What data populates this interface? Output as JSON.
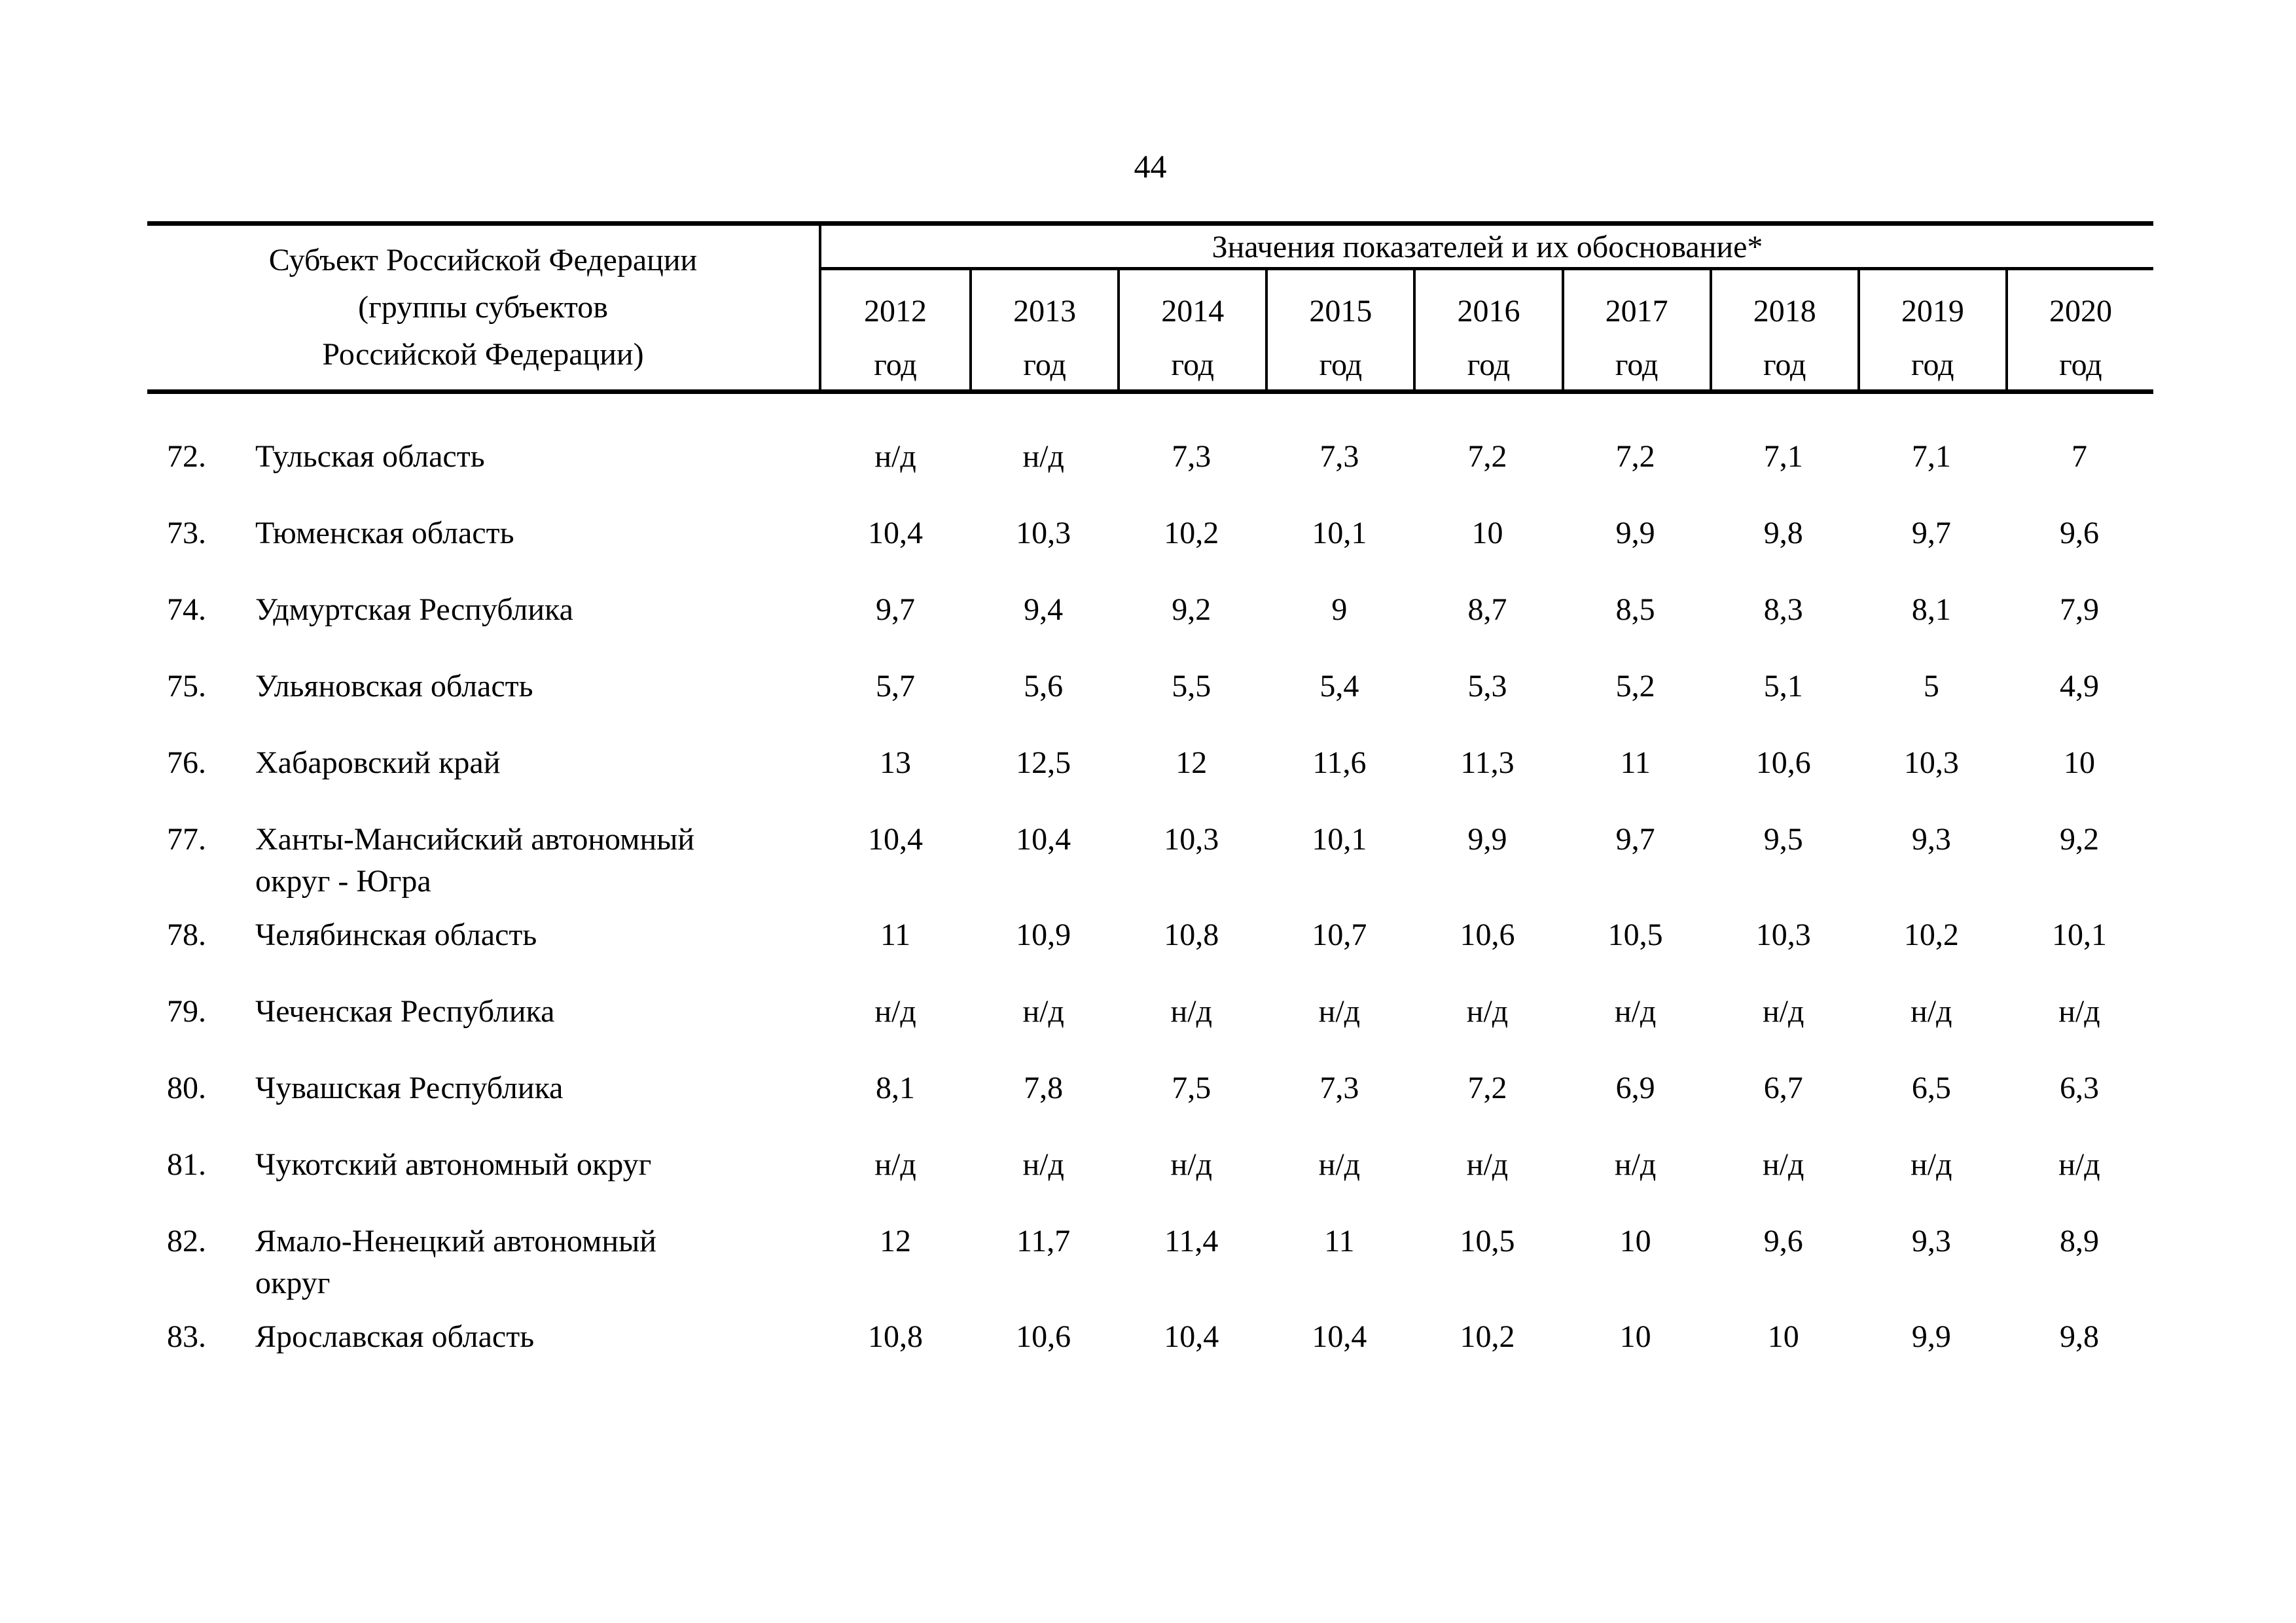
{
  "page": {
    "number": "44"
  },
  "colors": {
    "ink": "#000000",
    "paper": "#ffffff"
  },
  "table": {
    "name_header": "Субъект Российской Федерации\n(группы субъектов\nРоссийской Федерации)",
    "values_header": "Значения показателей и их обоснование*",
    "year_suffix": "год",
    "year_labels": [
      "2012",
      "2013",
      "2014",
      "2015",
      "2016",
      "2017",
      "2018",
      "2019",
      "2020"
    ],
    "rows": [
      {
        "num": "72.",
        "name": "Тульская область",
        "values": [
          "н/д",
          "н/д",
          "7,3",
          "7,3",
          "7,2",
          "7,2",
          "7,1",
          "7,1",
          "7"
        ]
      },
      {
        "num": "73.",
        "name": "Тюменская область",
        "values": [
          "10,4",
          "10,3",
          "10,2",
          "10,1",
          "10",
          "9,9",
          "9,8",
          "9,7",
          "9,6"
        ]
      },
      {
        "num": "74.",
        "name": "Удмуртская Республика",
        "values": [
          "9,7",
          "9,4",
          "9,2",
          "9",
          "8,7",
          "8,5",
          "8,3",
          "8,1",
          "7,9"
        ]
      },
      {
        "num": "75.",
        "name": "Ульяновская область",
        "values": [
          "5,7",
          "5,6",
          "5,5",
          "5,4",
          "5,3",
          "5,2",
          "5,1",
          "5",
          "4,9"
        ]
      },
      {
        "num": "76.",
        "name": "Хабаровский край",
        "values": [
          "13",
          "12,5",
          "12",
          "11,6",
          "11,3",
          "11",
          "10,6",
          "10,3",
          "10"
        ]
      },
      {
        "num": "77.",
        "name": "Ханты-Мансийский автономный\nокруг - Югра",
        "values": [
          "10,4",
          "10,4",
          "10,3",
          "10,1",
          "9,9",
          "9,7",
          "9,5",
          "9,3",
          "9,2"
        ]
      },
      {
        "num": "78.",
        "name": "Челябинская область",
        "values": [
          "11",
          "10,9",
          "10,8",
          "10,7",
          "10,6",
          "10,5",
          "10,3",
          "10,2",
          "10,1"
        ]
      },
      {
        "num": "79.",
        "name": "Чеченская Республика",
        "values": [
          "н/д",
          "н/д",
          "н/д",
          "н/д",
          "н/д",
          "н/д",
          "н/д",
          "н/д",
          "н/д"
        ]
      },
      {
        "num": "80.",
        "name": "Чувашская Республика",
        "values": [
          "8,1",
          "7,8",
          "7,5",
          "7,3",
          "7,2",
          "6,9",
          "6,7",
          "6,5",
          "6,3"
        ]
      },
      {
        "num": "81.",
        "name": "Чукотский автономный округ",
        "values": [
          "н/д",
          "н/д",
          "н/д",
          "н/д",
          "н/д",
          "н/д",
          "н/д",
          "н/д",
          "н/д"
        ]
      },
      {
        "num": "82.",
        "name": "Ямало-Ненецкий автономный\nокруг",
        "values": [
          "12",
          "11,7",
          "11,4",
          "11",
          "10,5",
          "10",
          "9,6",
          "9,3",
          "8,9"
        ]
      },
      {
        "num": "83.",
        "name": "Ярославская область",
        "values": [
          "10,8",
          "10,6",
          "10,4",
          "10,4",
          "10,2",
          "10",
          "10",
          "9,9",
          "9,8"
        ]
      }
    ]
  }
}
